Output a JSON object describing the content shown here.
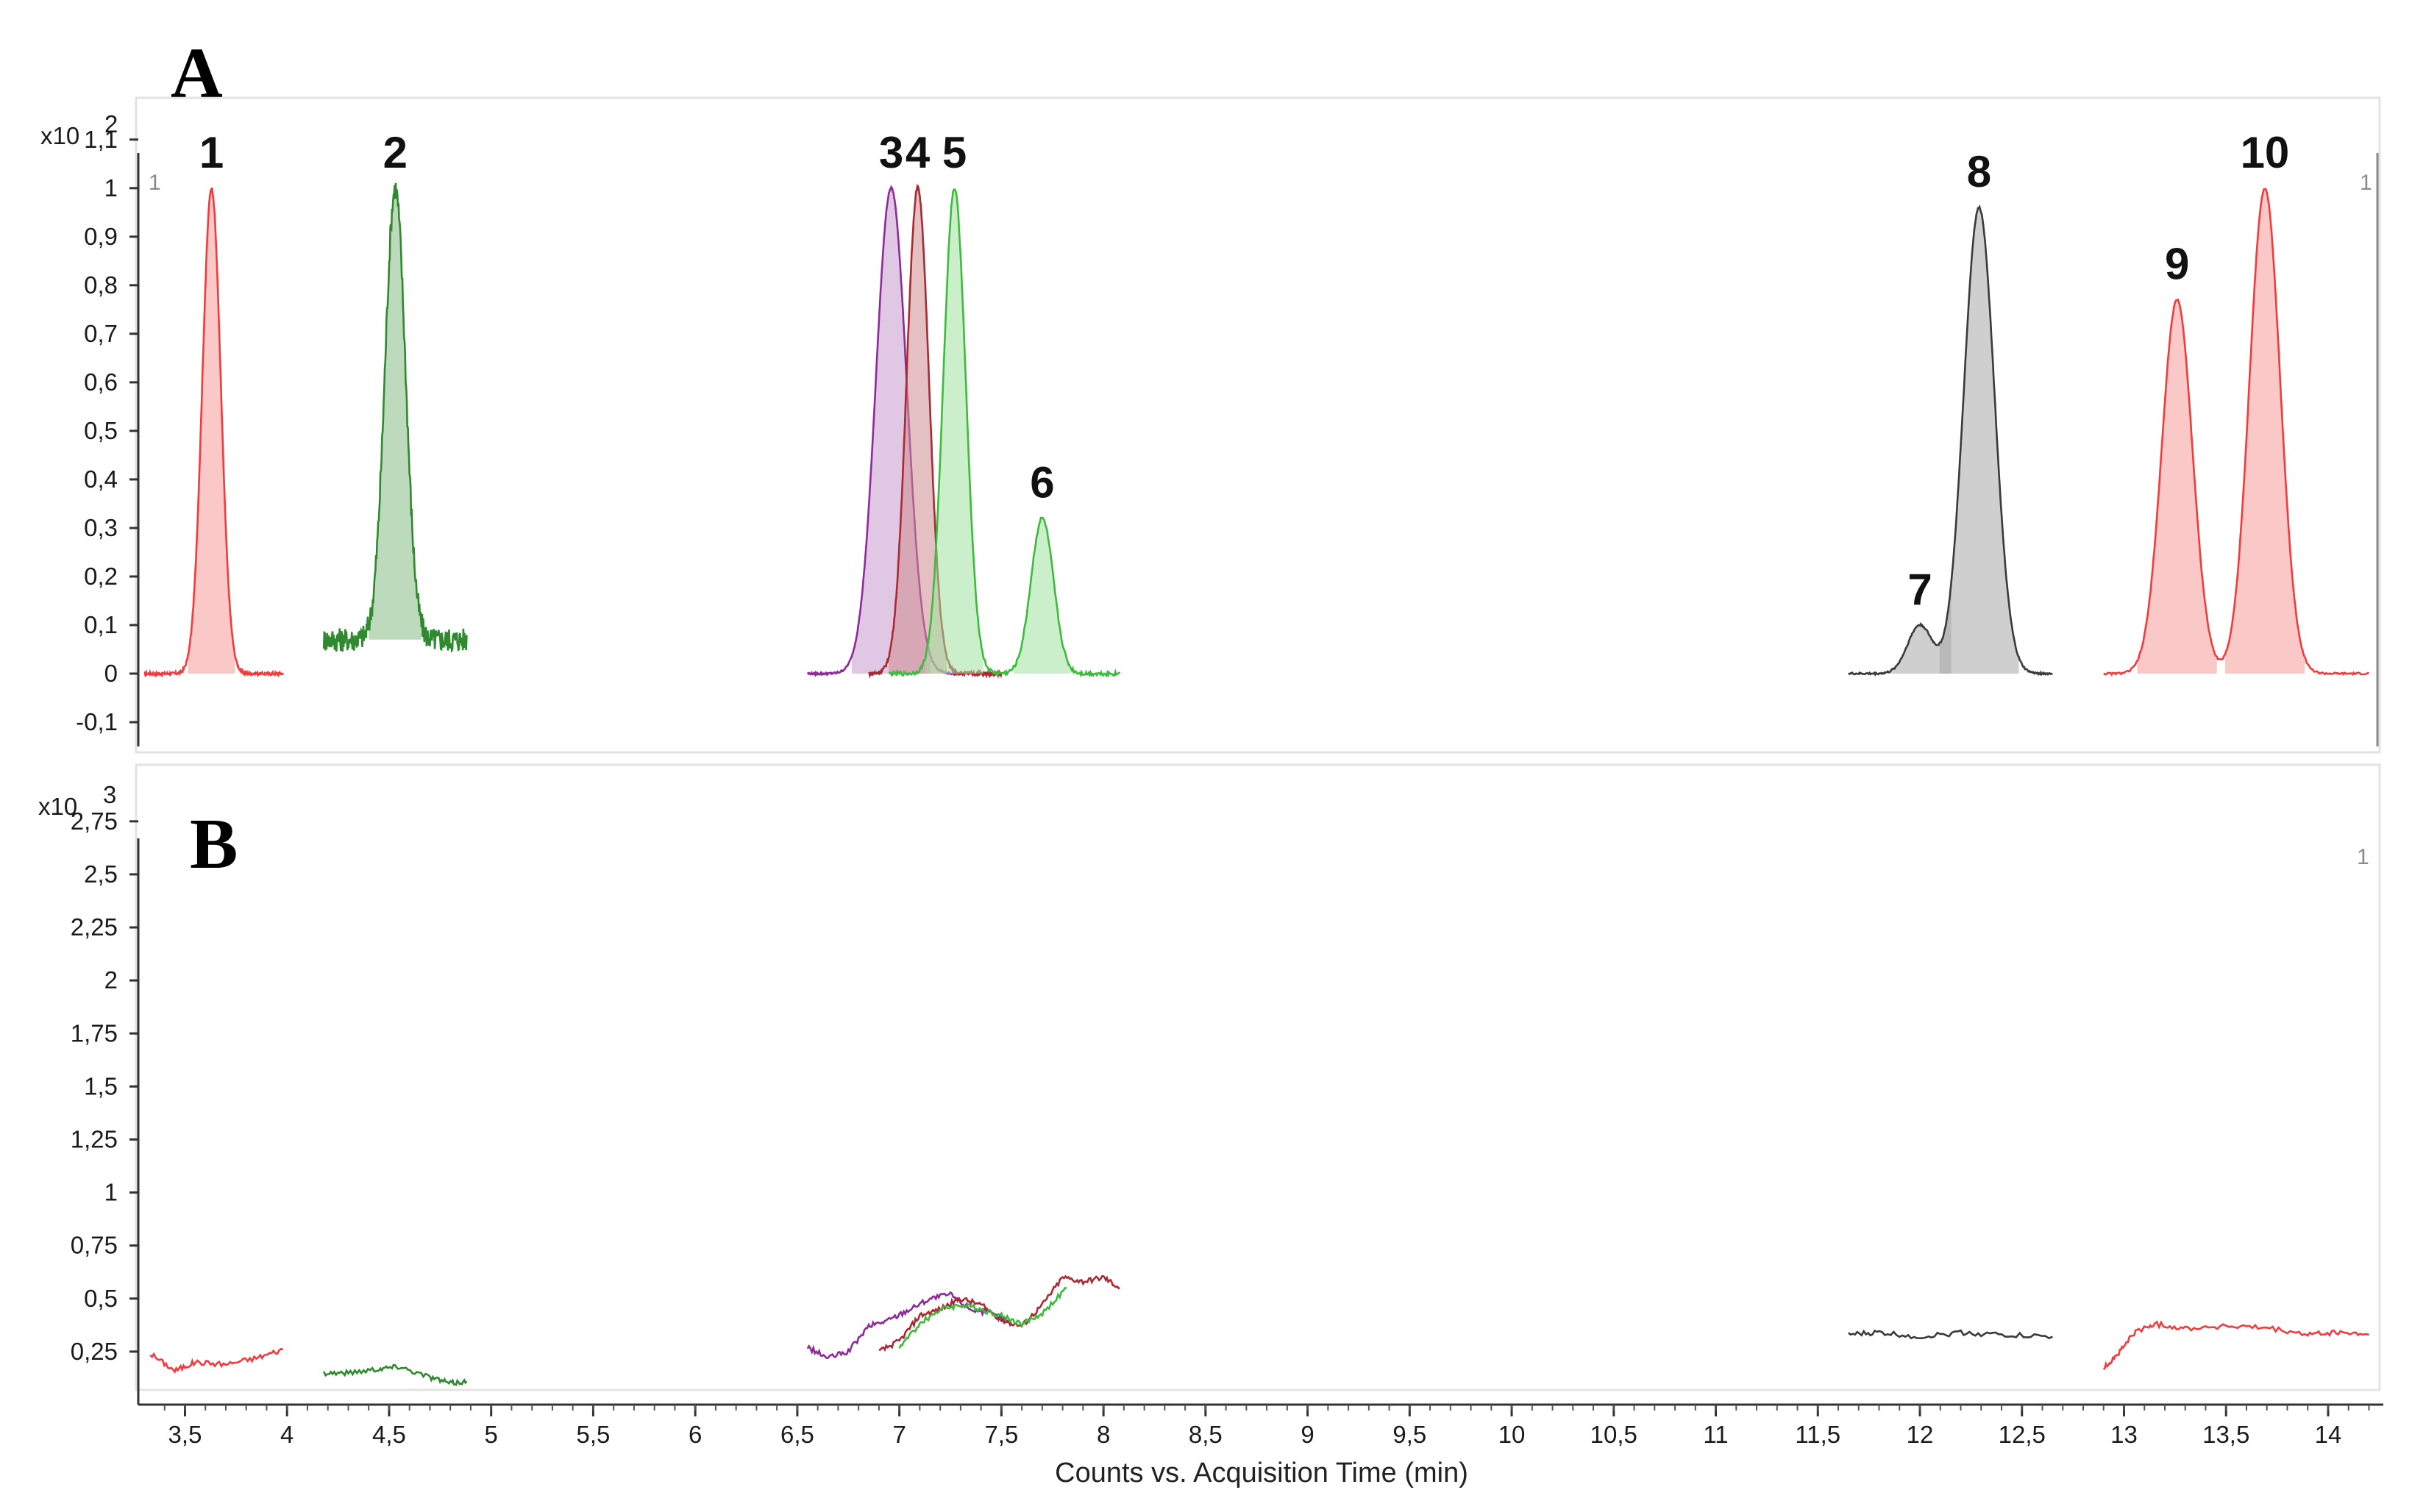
{
  "chart_data": [
    {
      "panel": "A",
      "type": "line",
      "y_scale_label": "x10",
      "y_scale_exponent": "2",
      "corner_marks": [
        "1",
        "1"
      ],
      "ylim": [
        -0.15,
        1.13
      ],
      "y_ticks": [
        {
          "v": 1.1,
          "t": "1,1"
        },
        {
          "v": 1.0,
          "t": "1"
        },
        {
          "v": 0.9,
          "t": "0,9"
        },
        {
          "v": 0.8,
          "t": "0,8"
        },
        {
          "v": 0.7,
          "t": "0,7"
        },
        {
          "v": 0.6,
          "t": "0,6"
        },
        {
          "v": 0.5,
          "t": "0,5"
        },
        {
          "v": 0.4,
          "t": "0,4"
        },
        {
          "v": 0.3,
          "t": "0,3"
        },
        {
          "v": 0.2,
          "t": "0,2"
        },
        {
          "v": 0.1,
          "t": "0,1"
        },
        {
          "v": 0.0,
          "t": "0"
        },
        {
          "v": -0.1,
          "t": "-0,1"
        }
      ],
      "series": [
        {
          "color": "#f03c3c",
          "fill": "#f79a9a",
          "x_range": [
            3.3,
            3.98
          ],
          "baseline": 0.0,
          "noise": 0.003,
          "peaks": [
            {
              "x": 3.63,
              "h": 1.0,
              "w": 0.045,
              "label": "1"
            }
          ]
        },
        {
          "color": "#2f8a2f",
          "fill": "#86bb86",
          "x_range": [
            4.18,
            4.88
          ],
          "baseline": 0.07,
          "noise": 0.025,
          "peaks": [
            {
              "x": 4.53,
              "h": 0.93,
              "w": 0.05,
              "label": "2"
            }
          ]
        },
        {
          "color": "#8f2a9a",
          "fill": "#c79ad0",
          "x_range": [
            6.55,
            7.3
          ],
          "baseline": 0.0,
          "noise": 0.002,
          "peaks": [
            {
              "x": 6.96,
              "h": 1.0,
              "w": 0.075,
              "label": "3"
            }
          ]
        },
        {
          "color": "#a82a35",
          "fill": "#d08d90",
          "x_range": [
            6.85,
            7.5
          ],
          "baseline": 0.0,
          "noise": 0.004,
          "peaks": [
            {
              "x": 7.09,
              "h": 1.0,
              "w": 0.055,
              "label": "4"
            }
          ]
        },
        {
          "color": "#3dbb3d",
          "fill": "#9fe29f",
          "x_range": [
            6.95,
            8.08
          ],
          "baseline": 0.0,
          "noise": 0.004,
          "peaks": [
            {
              "x": 7.27,
              "h": 1.0,
              "w": 0.055,
              "label": "5"
            },
            {
              "x": 7.7,
              "h": 0.32,
              "w": 0.055,
              "label": "6"
            }
          ]
        },
        {
          "color": "#3a3a3a",
          "fill": "#a7a7a7",
          "x_range": [
            11.65,
            12.65
          ],
          "baseline": 0.0,
          "noise": 0.002,
          "peaks": [
            {
              "x": 12.0,
              "h": 0.1,
              "w": 0.06,
              "label": "7"
            },
            {
              "x": 12.29,
              "h": 0.96,
              "w": 0.075,
              "label": "8"
            }
          ]
        },
        {
          "color": "#f03c3c",
          "fill": "#f79a9a",
          "x_range": [
            12.9,
            14.2
          ],
          "baseline": 0.0,
          "noise": 0.002,
          "peaks": [
            {
              "x": 13.26,
              "h": 0.77,
              "w": 0.075,
              "label": "9"
            },
            {
              "x": 13.69,
              "h": 1.0,
              "w": 0.075,
              "label": "10"
            }
          ]
        }
      ]
    },
    {
      "panel": "B",
      "type": "line",
      "y_scale_label": "x10",
      "y_scale_exponent": "3",
      "corner_marks": [
        "1"
      ],
      "ylim": [
        0.0,
        2.85
      ],
      "y_ticks": [
        {
          "v": 2.75,
          "t": "2,75"
        },
        {
          "v": 2.5,
          "t": "2,5"
        },
        {
          "v": 2.25,
          "t": "2,25"
        },
        {
          "v": 2.0,
          "t": "2"
        },
        {
          "v": 1.75,
          "t": "1,75"
        },
        {
          "v": 1.5,
          "t": "1,5"
        },
        {
          "v": 1.25,
          "t": "1,25"
        },
        {
          "v": 1.0,
          "t": "1"
        },
        {
          "v": 0.75,
          "t": "0,75"
        },
        {
          "v": 0.5,
          "t": "0,5"
        },
        {
          "v": 0.25,
          "t": "0,25"
        }
      ],
      "series": [
        {
          "color": "#f03c3c",
          "points": [
            [
              3.33,
              0.24
            ],
            [
              3.45,
              0.16
            ],
            [
              3.55,
              0.2
            ],
            [
              3.7,
              0.19
            ],
            [
              3.85,
              0.22
            ],
            [
              3.98,
              0.26
            ]
          ]
        },
        {
          "color": "#2f8a2f",
          "points": [
            [
              4.18,
              0.15
            ],
            [
              4.3,
              0.15
            ],
            [
              4.45,
              0.17
            ],
            [
              4.55,
              0.18
            ],
            [
              4.7,
              0.13
            ],
            [
              4.8,
              0.1
            ],
            [
              4.88,
              0.11
            ]
          ]
        },
        {
          "color": "#8f2a9a",
          "points": [
            [
              6.55,
              0.27
            ],
            [
              6.65,
              0.22
            ],
            [
              6.75,
              0.25
            ],
            [
              6.85,
              0.37
            ],
            [
              6.95,
              0.4
            ],
            [
              7.05,
              0.45
            ],
            [
              7.15,
              0.5
            ],
            [
              7.25,
              0.52
            ],
            [
              7.35,
              0.45
            ],
            [
              7.45,
              0.43
            ],
            [
              7.55,
              0.38
            ]
          ]
        },
        {
          "color": "#a82a35",
          "points": [
            [
              6.9,
              0.25
            ],
            [
              7.0,
              0.3
            ],
            [
              7.1,
              0.42
            ],
            [
              7.2,
              0.45
            ],
            [
              7.3,
              0.5
            ],
            [
              7.4,
              0.47
            ],
            [
              7.5,
              0.4
            ],
            [
              7.6,
              0.37
            ],
            [
              7.7,
              0.47
            ],
            [
              7.8,
              0.6
            ],
            [
              7.9,
              0.58
            ],
            [
              8.0,
              0.6
            ],
            [
              8.08,
              0.55
            ]
          ]
        },
        {
          "color": "#3dbb3d",
          "points": [
            [
              7.0,
              0.27
            ],
            [
              7.1,
              0.38
            ],
            [
              7.2,
              0.45
            ],
            [
              7.3,
              0.47
            ],
            [
              7.4,
              0.45
            ],
            [
              7.5,
              0.42
            ],
            [
              7.6,
              0.38
            ],
            [
              7.7,
              0.43
            ],
            [
              7.82,
              0.55
            ]
          ]
        },
        {
          "color": "#3a3a3a",
          "points": [
            [
              11.65,
              0.33
            ],
            [
              11.8,
              0.34
            ],
            [
              12.0,
              0.32
            ],
            [
              12.2,
              0.34
            ],
            [
              12.4,
              0.33
            ],
            [
              12.65,
              0.32
            ]
          ]
        },
        {
          "color": "#f03c3c",
          "points": [
            [
              12.9,
              0.17
            ],
            [
              12.98,
              0.25
            ],
            [
              13.05,
              0.34
            ],
            [
              13.15,
              0.38
            ],
            [
              13.3,
              0.36
            ],
            [
              13.5,
              0.37
            ],
            [
              13.7,
              0.36
            ],
            [
              13.9,
              0.33
            ],
            [
              14.05,
              0.34
            ],
            [
              14.2,
              0.33
            ]
          ]
        }
      ]
    }
  ],
  "x_axis": {
    "xlim": [
      3.3,
      14.22
    ],
    "ticks": [
      {
        "v": 3.5,
        "t": "3,5"
      },
      {
        "v": 4.0,
        "t": "4"
      },
      {
        "v": 4.5,
        "t": "4,5"
      },
      {
        "v": 5.0,
        "t": "5"
      },
      {
        "v": 5.5,
        "t": "5,5"
      },
      {
        "v": 6.0,
        "t": "6"
      },
      {
        "v": 6.5,
        "t": "6,5"
      },
      {
        "v": 7.0,
        "t": "7"
      },
      {
        "v": 7.5,
        "t": "7,5"
      },
      {
        "v": 8.0,
        "t": "8"
      },
      {
        "v": 8.5,
        "t": "8,5"
      },
      {
        "v": 9.0,
        "t": "9"
      },
      {
        "v": 9.5,
        "t": "9,5"
      },
      {
        "v": 10.0,
        "t": "10"
      },
      {
        "v": 10.5,
        "t": "10,5"
      },
      {
        "v": 11.0,
        "t": "11"
      },
      {
        "v": 11.5,
        "t": "11,5"
      },
      {
        "v": 12.0,
        "t": "12"
      },
      {
        "v": 12.5,
        "t": "12,5"
      },
      {
        "v": 13.0,
        "t": "13"
      },
      {
        "v": 13.5,
        "t": "13,5"
      },
      {
        "v": 14.0,
        "t": "14"
      }
    ],
    "label": "Counts vs. Acquisition Time (min)"
  },
  "grid": false
}
